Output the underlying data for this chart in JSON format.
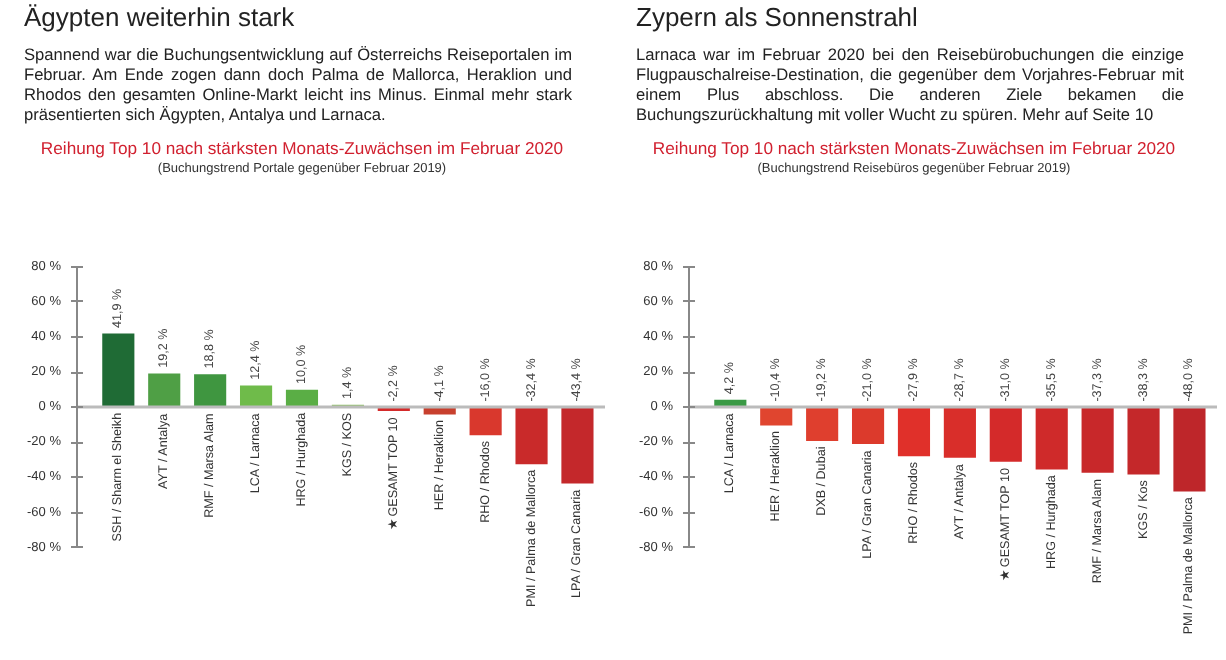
{
  "chart_data": [
    {
      "type": "bar",
      "title": "Ägypten weiterhin stark",
      "subtitle": "Reihung Top 10 nach stärksten Monats-Zuwächsen im Februar 2020",
      "annotations": [
        "Spannend war die Buchungsentwicklung auf Österreichs Reiseportalen im Februar. Am Ende zogen dann doch Palma de Mallorca, Heraklion und Rhodos den gesamten Online-Markt leicht ins Minus. Einmal mehr stark präsentierten sich Ägypten, Antalya und Larnaca.",
        "(Buchungstrend Portale gegenüber Februar 2019)"
      ],
      "categories": [
        "SSH / Sharm el Sheikh",
        "AYT / Antalya",
        "RMF / Marsa Alam",
        "LCA / Larnaca",
        "HRG / Hurghada",
        "KGS / KOS",
        "★ GESAMT TOP 10",
        "HER / Heraklion",
        "RHO / Rhodos",
        "PMI / Palma de Mallorca",
        "LPA / Gran Canaria"
      ],
      "values": [
        41.9,
        19.2,
        18.8,
        12.4,
        10.0,
        1.4,
        -2.2,
        -4.1,
        -16.0,
        -32.4,
        -43.4
      ],
      "value_labels": [
        "41,9 %",
        "19,2 %",
        "18,8 %",
        "12,4 %",
        "10,0 %",
        "1,4 %",
        "-2,2 %",
        "-4,1 %",
        "-16,0 %",
        "-32,4 %",
        "-43,4 %"
      ],
      "colors": [
        "#1f6b35",
        "#4f9f45",
        "#3f9640",
        "#6fbb4a",
        "#5aae45",
        "#8cc060",
        "#d42a2a",
        "#c8402e",
        "#d9382d",
        "#c92a2a",
        "#c4282b"
      ],
      "ylim": [
        -80,
        80
      ],
      "yticks": [
        {
          "value": -80,
          "label": "-80 %"
        },
        {
          "value": -60,
          "label": "-60 %"
        },
        {
          "value": -40,
          "label": "-40 %"
        },
        {
          "value": -20,
          "label": "-20 %"
        },
        {
          "value": 0,
          "label": "0 %"
        },
        {
          "value": 20,
          "label": "20 %"
        },
        {
          "value": 40,
          "label": "40 %"
        },
        {
          "value": 60,
          "label": "60 %"
        },
        {
          "value": 80,
          "label": "80 %"
        }
      ]
    },
    {
      "type": "bar",
      "title": "Zypern als Sonnenstrahl",
      "subtitle": "Reihung Top 10 nach stärksten Monats-Zuwächsen im Februar 2020",
      "annotations": [
        "Larnaca war im Februar 2020 bei den Reisebürobuchungen die einzige Flugpauschalreise-Destination, die gegenüber dem Vorjahres-Februar mit einem Plus abschloss. Die anderen Ziele bekamen die Buchungszurückhaltung mit voller Wucht zu spüren. Mehr auf Seite 10",
        "(Buchungstrend Reisebüros gegenüber Februar 2019)"
      ],
      "categories": [
        "LCA / Larnaca",
        "HER / Heraklion",
        "DXB / Dubai",
        "LPA / Gran Canaria",
        "RHO / Rhodos",
        "AYT / Antalya",
        "★ GESAMT TOP 10",
        "HRG / Hurghada",
        "RMF / Marsa Alam",
        "KGS / Kos",
        "PMI / Palma de Mallorca"
      ],
      "values": [
        4.2,
        -10.4,
        -19.2,
        -21.0,
        -27.9,
        -28.7,
        -31.0,
        -35.5,
        -37.3,
        -38.3,
        -48.0
      ],
      "value_labels": [
        "4,2 %",
        "-10,4 %",
        "-19,2 %",
        "-21,0 %",
        "-27,9 %",
        "-28,7 %",
        "-31,0 %",
        "-35,5 %",
        "-37,3 %",
        "-38,3 %",
        "-48,0 %"
      ],
      "colors": [
        "#3a9a45",
        "#e0452f",
        "#df3f2e",
        "#dc3a2c",
        "#e0302a",
        "#d92e2a",
        "#d42a2a",
        "#cf2a2a",
        "#c8282a",
        "#c4282a",
        "#be262a"
      ],
      "ylim": [
        -80,
        80
      ],
      "yticks": [
        {
          "value": -80,
          "label": "-80 %"
        },
        {
          "value": -60,
          "label": "-60 %"
        },
        {
          "value": -40,
          "label": "-40 %"
        },
        {
          "value": -20,
          "label": "-20 %"
        },
        {
          "value": 0,
          "label": "0 %"
        },
        {
          "value": 20,
          "label": "20 %"
        },
        {
          "value": 40,
          "label": "40 %"
        },
        {
          "value": 60,
          "label": "60 %"
        },
        {
          "value": 80,
          "label": "80 %"
        }
      ]
    }
  ]
}
